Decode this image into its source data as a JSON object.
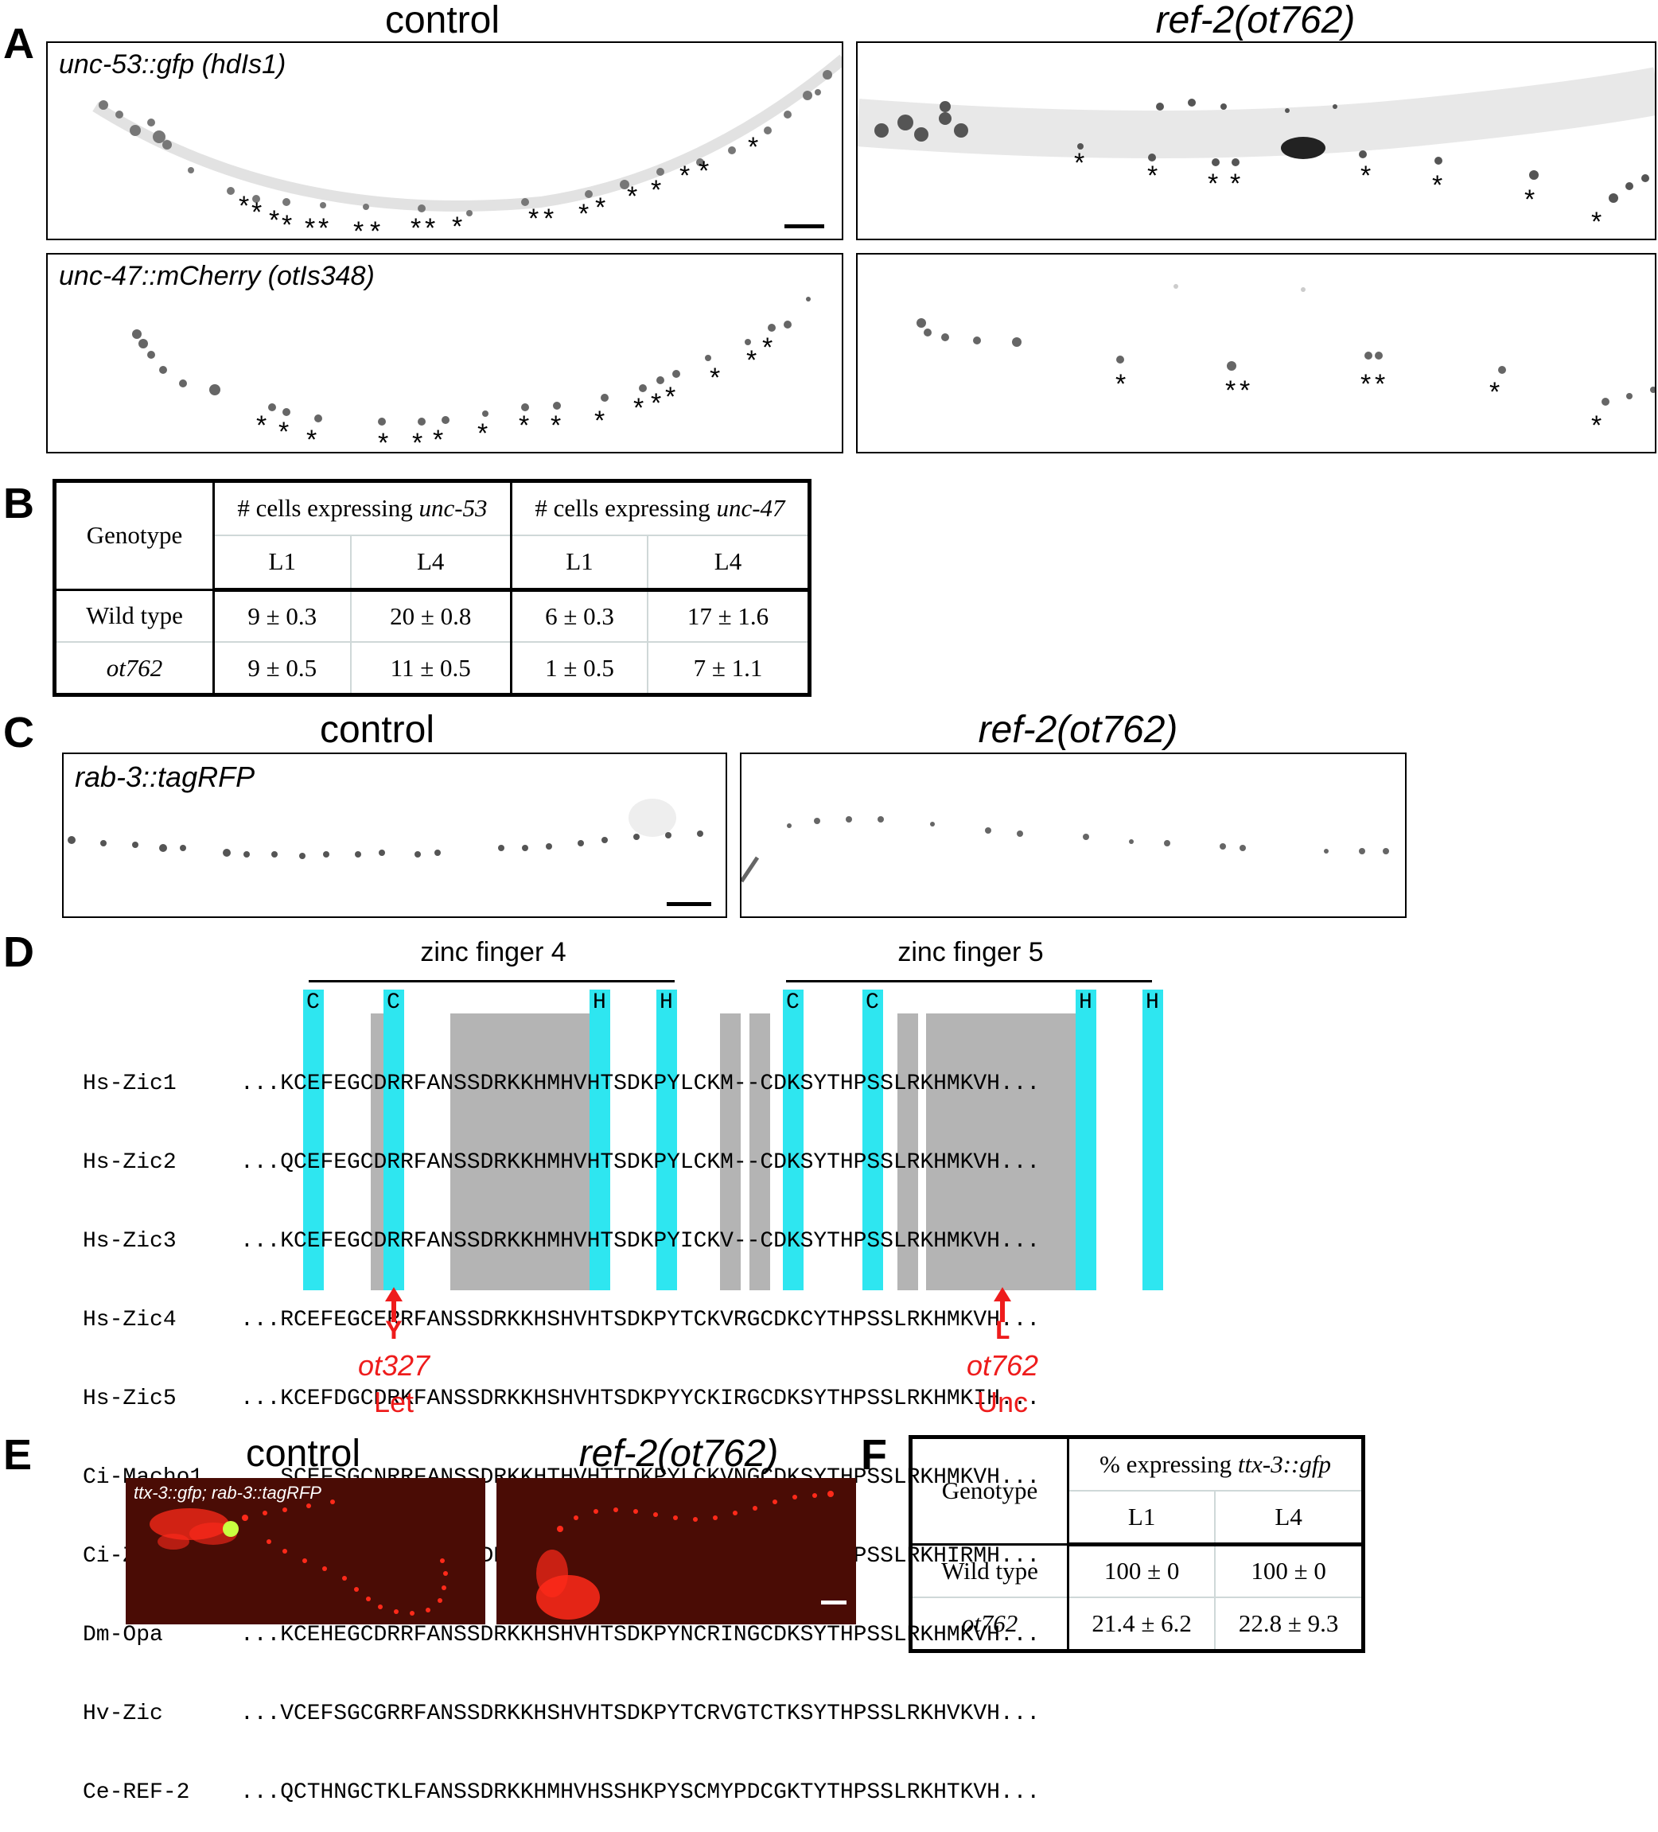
{
  "panelA": {
    "letter": "A",
    "title_control": "control",
    "title_mutant": "ref-2(ot762)",
    "label_top": "unc-53::gfp (hdIs1)",
    "label_bottom": "unc-47::mCherry (otIs348)",
    "asterisk": "*"
  },
  "panelB": {
    "letter": "B",
    "header_genotype": "Genotype",
    "header_col1_prefix": "# cells expressing ",
    "header_col1_gene": "unc-53",
    "header_col2_prefix": "# cells expressing ",
    "header_col2_gene": "unc-47",
    "stages": [
      "L1",
      "L4",
      "L1",
      "L4"
    ],
    "rows": [
      {
        "genotype": "Wild type",
        "values": [
          "9 ± 0.3",
          "20 ± 0.8",
          "6 ± 0.3",
          "17 ± 1.6"
        ]
      },
      {
        "genotype": "ot762",
        "values": [
          "9 ± 0.5",
          "11 ± 0.5",
          "1 ± 0.5",
          "7 ± 1.1"
        ]
      }
    ]
  },
  "panelC": {
    "letter": "C",
    "title_control": "control",
    "title_mutant": "ref-2(ot762)",
    "label": "rab-3::tagRFP"
  },
  "panelD": {
    "letter": "D",
    "zf4": "zinc finger 4",
    "zf5": "zinc finger 5",
    "conserved": [
      "C",
      "C",
      "H",
      "H",
      "C",
      "C",
      "H",
      "H"
    ],
    "species": [
      "Hs-Zic1",
      "Hs-Zic2",
      "Hs-Zic3",
      "Hs-Zic4",
      "Hs-Zic5",
      "Ci-Macho1",
      "Ci-ZicL",
      "Dm-Opa",
      "Hv-Zic",
      "Ce-REF-2"
    ],
    "sequences": [
      "...KCEFEGCDRRFANSSDRKKHMHVHTSDKPYLCKM--CDKSYTHPSSLRKHMKVH...",
      "...QCEFEGCDRRFANSSDRKKHMHVHTSDKPYLCKM--CDKSYTHPSSLRKHMKVH...",
      "...KCEFEGCDRRFANSSDRKKHMHVHTSDKPYICKV--CDKSYTHPSSLRKHMKVH...",
      "...RCEFEGCERRFANSSDRKKHSHVHTSDKPYTCKVRGCDKCYTHPSSLRKHMKVH...",
      "...KCEFDGCDRKFANSSDRKKHSHVHTSDKPYYCKIRGCDKSYTHPSSLRKHMKIH...",
      "...SCEFSGCNRRFANSSDRKKHTHVHTTDKPYLCKVNGCDKSYTHPSSLRKHMKVH...",
      "...PCKFPGCERRFANSSDRKKHSYMHNTEKLYACKYEGCDRSYTHPSSLRKHIRMH...",
      "...KCEHEGCDRRFANSSDRKKHSHVHTSDKPYNCRINGCDKSYTHPSSLRKHMKVH...",
      "...VCEFSGCGRRFANSSDRKKHSHVHTSDKPYTCRVGTCTKSYTHPSSLRKHVKVH...",
      "...QCTHNGCTKLFANSSDRKKHMHVHSSHKPYSCMYPDCGKTYTHPSSLRKHTKVH..."
    ],
    "mut1_aa": "Y",
    "mut1_allele": "ot327",
    "mut1_pheno": "Let",
    "mut2_aa": "L",
    "mut2_allele": "ot762",
    "mut2_pheno": "Unc"
  },
  "panelE": {
    "letter": "E",
    "title_control": "control",
    "title_mutant": "ref-2(ot762)",
    "label": "ttx-3::gfp; rab-3::tagRFP",
    "colors": {
      "background": "#4a0c05",
      "red_signal": "#ff2a1a",
      "green_signal": "#c8ff40"
    }
  },
  "panelF": {
    "letter": "F",
    "header_genotype": "Genotype",
    "header_prefix": "% expressing ",
    "header_gene": "ttx-3::gfp",
    "stages": [
      "L1",
      "L4"
    ],
    "rows": [
      {
        "genotype": "Wild type",
        "values": [
          "100 ± 0",
          "100 ± 0"
        ]
      },
      {
        "genotype": "ot762",
        "values": [
          "21.4 ± 6.2",
          "22.8 ± 9.3"
        ]
      }
    ]
  },
  "colors": {
    "cyan": "#2ee6f0",
    "gray": "#b4b4b4",
    "red": "#ee1c1c"
  }
}
